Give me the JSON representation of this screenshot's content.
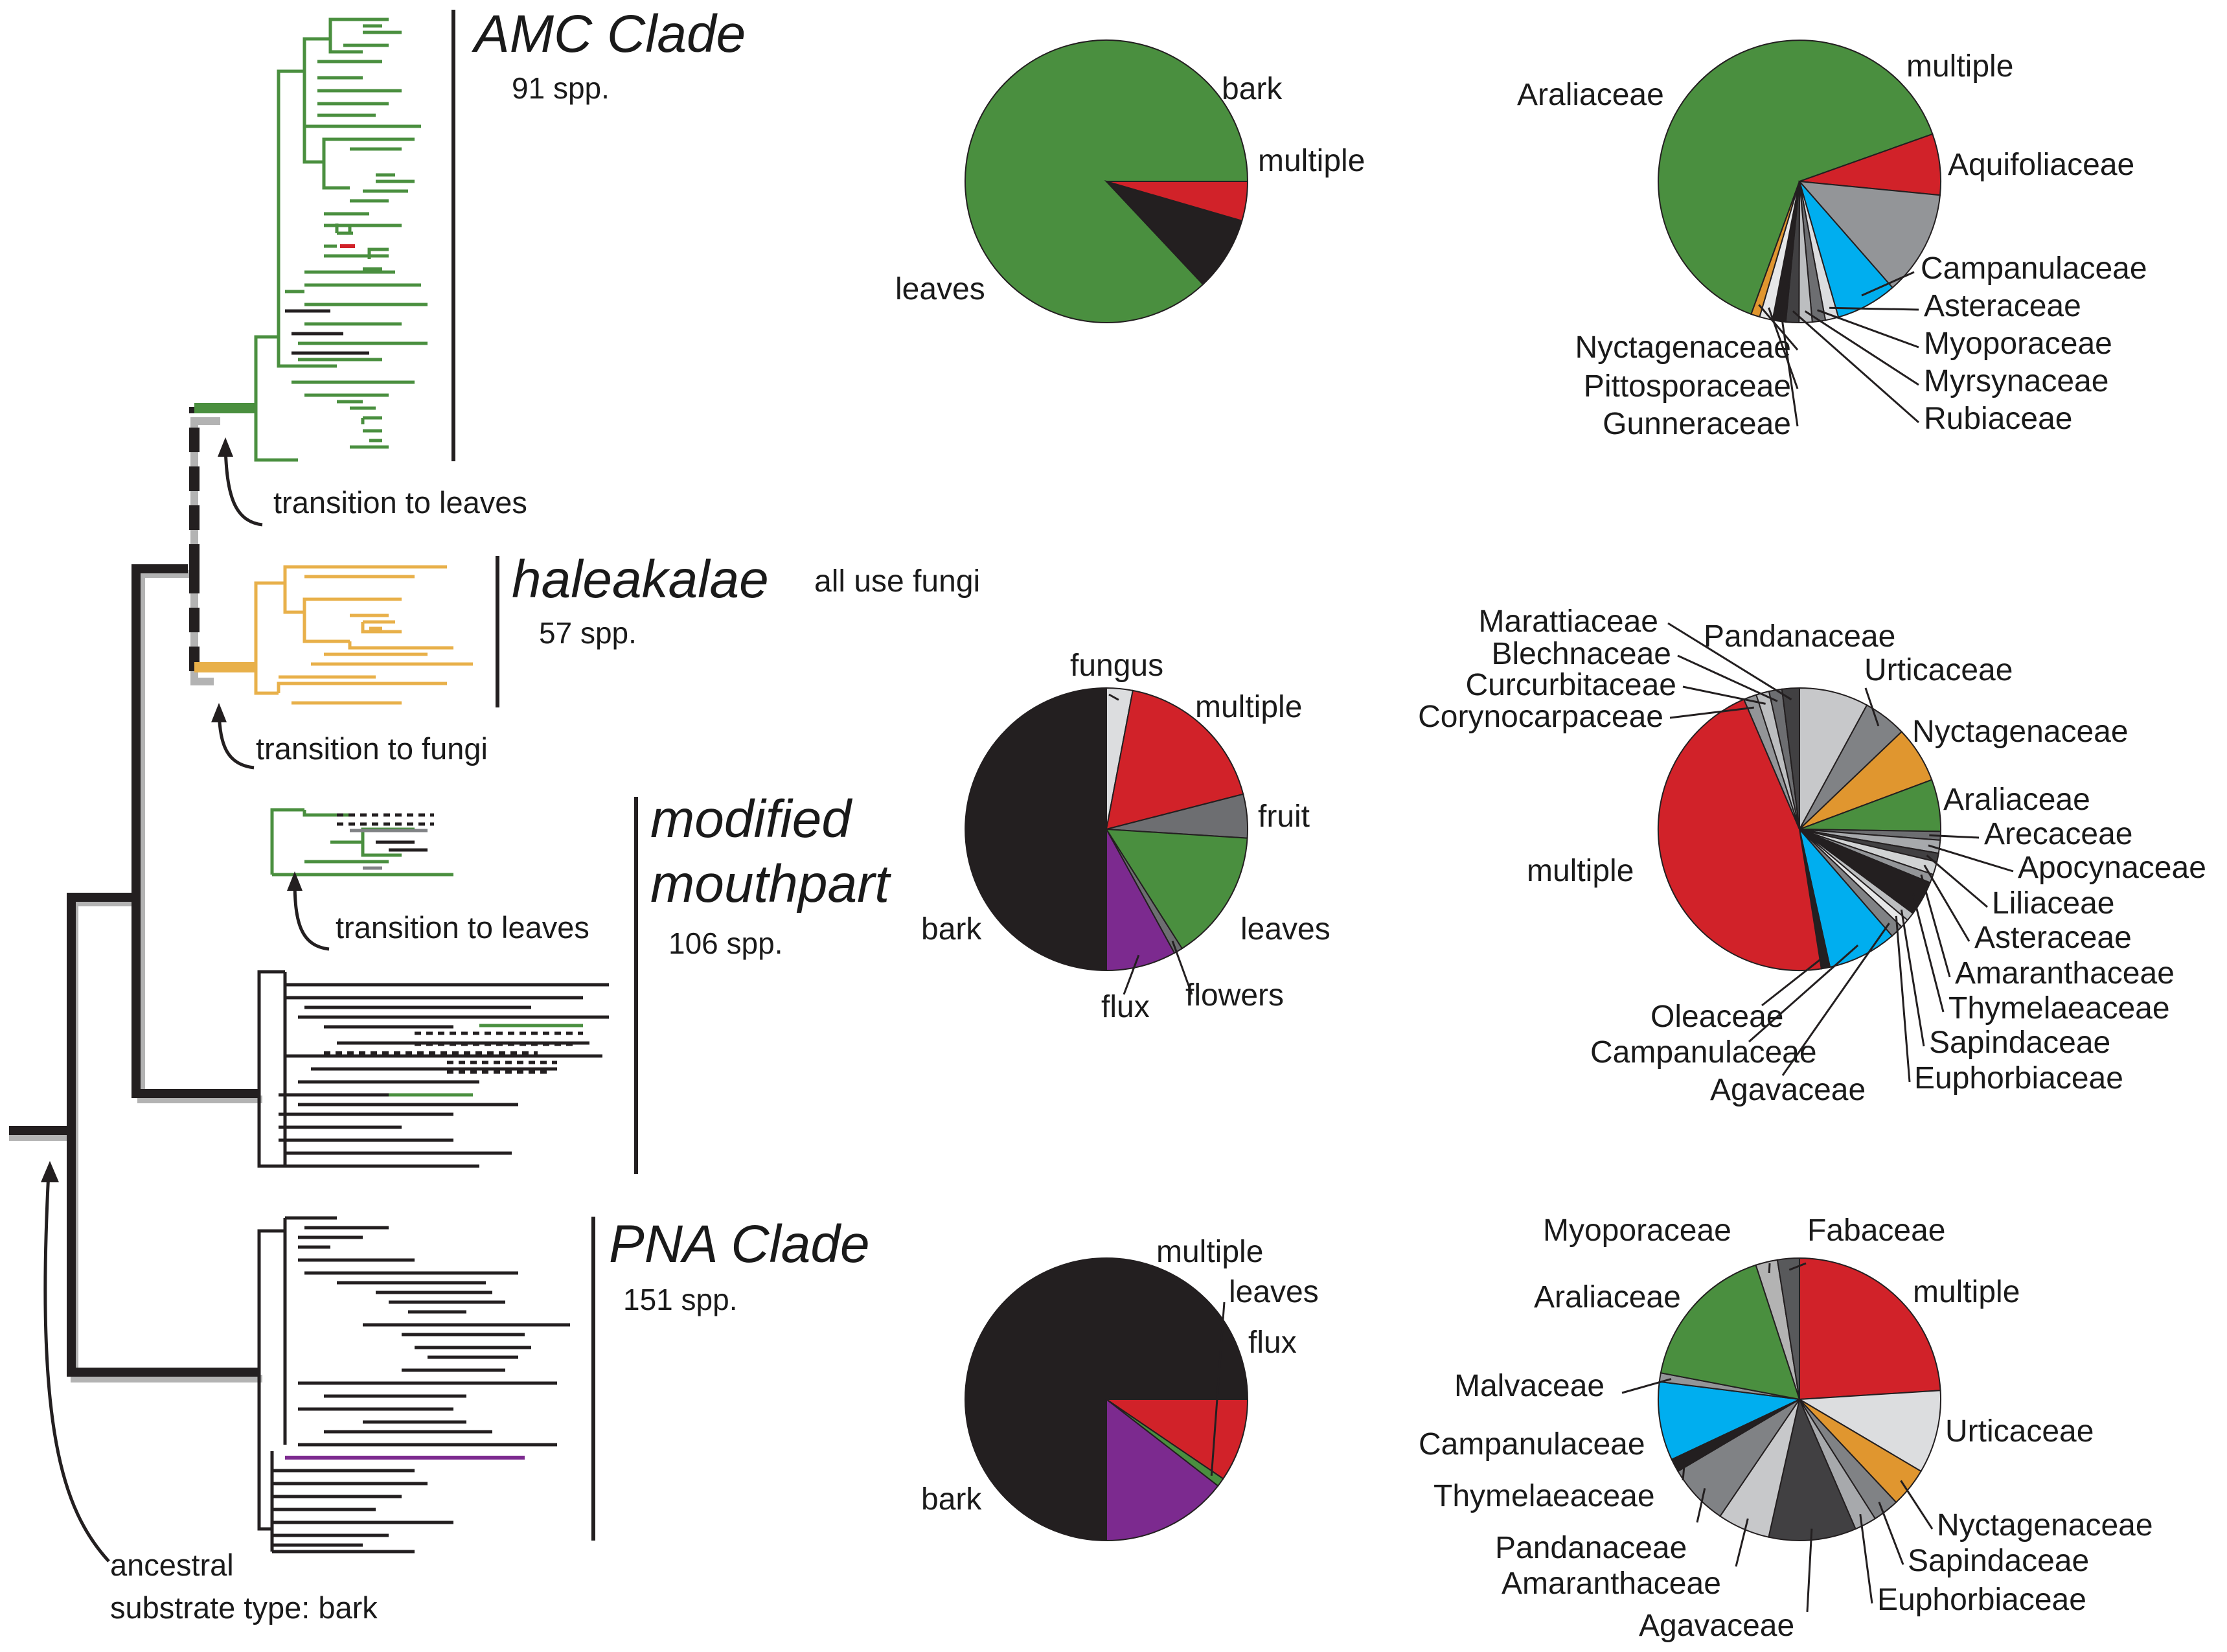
{
  "colors": {
    "leaves_green": "#4a8f3f",
    "bark_black": "#231f20",
    "multiple_red": "#d12229",
    "fungus_light": "#dcdddf",
    "fruit_dark_gray": "#6d6e71",
    "flux_purple": "#7c2a8f",
    "fungi_orange": "#e8b04a",
    "nyctag_orange": "#e0962f",
    "campan_blue": "#00aeef",
    "aquifol_gray": "#939598",
    "shadow_gray": "#b3b3b3"
  },
  "clades": {
    "amc": {
      "name": "AMC Clade",
      "spp": "91 spp."
    },
    "haleakalae": {
      "name": "haleakalae",
      "spp": "57 spp.",
      "note": "all use fungi"
    },
    "modified": {
      "name_line1": "modified",
      "name_line2": "mouthpart",
      "spp": "106 spp."
    },
    "pna": {
      "name": "PNA Clade",
      "spp": "151 spp."
    }
  },
  "annotations": {
    "transition_leaves_1": "transition to leaves",
    "transition_fungi": "transition to fungi",
    "transition_leaves_2": "transition to leaves",
    "ancestral_line1": "ancestral",
    "ancestral_line2": "substrate type: bark"
  },
  "substrate_pies": {
    "amc": {
      "slices": [
        {
          "label": "leaves",
          "pct": 87.0,
          "color": "#4a8f3f"
        },
        {
          "label": "bark",
          "pct": 8.5,
          "color": "#231f20"
        },
        {
          "label": "multiple",
          "pct": 4.5,
          "color": "#d12229"
        }
      ]
    },
    "modified": {
      "slices": [
        {
          "label": "bark",
          "pct": 50.0,
          "color": "#231f20"
        },
        {
          "label": "fungus",
          "pct": 3.0,
          "color": "#dcdddf"
        },
        {
          "label": "multiple",
          "pct": 18.0,
          "color": "#d12229"
        },
        {
          "label": "fruit",
          "pct": 5.0,
          "color": "#6d6e71"
        },
        {
          "label": "leaves",
          "pct": 15.0,
          "color": "#4a8f3f"
        },
        {
          "label": "flowers",
          "pct": 1.0,
          "color": "#6d6e71"
        },
        {
          "label": "flux",
          "pct": 8.0,
          "color": "#7c2a8f"
        }
      ]
    },
    "pna": {
      "slices": [
        {
          "label": "bark",
          "pct": 75.0,
          "color": "#231f20"
        },
        {
          "label": "multiple",
          "pct": 9.5,
          "color": "#d12229"
        },
        {
          "label": "leaves",
          "pct": 1.0,
          "color": "#4a8f3f"
        },
        {
          "label": "flux",
          "pct": 14.5,
          "color": "#7c2a8f"
        }
      ]
    }
  },
  "family_pies": {
    "amc": {
      "slices": [
        {
          "label": "Araliaceae",
          "pct": 64.0,
          "color": "#4a8f3f"
        },
        {
          "label": "multiple",
          "pct": 7.0,
          "color": "#d12229"
        },
        {
          "label": "Aquifoliaceae",
          "pct": 12.0,
          "color": "#939598"
        },
        {
          "label": "Campanulaceae",
          "pct": 7.0,
          "color": "#00aeef"
        },
        {
          "label": "Asteraceae",
          "pct": 1.5,
          "color": "#dcdddf"
        },
        {
          "label": "Myoporaceae",
          "pct": 1.5,
          "color": "#6d6e71"
        },
        {
          "label": "Myrsynaceae",
          "pct": 1.5,
          "color": "#bcbec0"
        },
        {
          "label": "Rubiaceae",
          "pct": 1.5,
          "color": "#414042"
        },
        {
          "label": "Gunneraceae",
          "pct": 1.5,
          "color": "#231f20"
        },
        {
          "label": "Pittosporaceae",
          "pct": 1.5,
          "color": "#e6e7e8"
        },
        {
          "label": "Nyctagenaceae",
          "pct": 1.0,
          "color": "#e0962f"
        }
      ]
    },
    "modified": {
      "slices": [
        {
          "label": "Pandanaceae",
          "pct": 8.0,
          "color": "#c7c8ca"
        },
        {
          "label": "Urticaceae",
          "pct": 5.0,
          "color": "#808285"
        },
        {
          "label": "Nyctagenaceae",
          "pct": 6.5,
          "color": "#e0962f"
        },
        {
          "label": "Araliaceae",
          "pct": 6.0,
          "color": "#4a8f3f"
        },
        {
          "label": "Arecaceae",
          "pct": 1.0,
          "color": "#6d6e71"
        },
        {
          "label": "Apocynaceae",
          "pct": 1.5,
          "color": "#a7a9ac"
        },
        {
          "label": "Liliaceae",
          "pct": 1.0,
          "color": "#414042"
        },
        {
          "label": "Asteraceae",
          "pct": 1.5,
          "color": "#d1d3d4"
        },
        {
          "label": "Amaranthaceae",
          "pct": 1.0,
          "color": "#939598"
        },
        {
          "label": "Thymelaeaceae",
          "pct": 4.0,
          "color": "#231f20"
        },
        {
          "label": "Sapindaceae",
          "pct": 1.0,
          "color": "#bcbec0"
        },
        {
          "label": "Euphorbiaceae",
          "pct": 1.0,
          "color": "#e6e7e8"
        },
        {
          "label": "Agavaceae",
          "pct": 1.5,
          "color": "#808285"
        },
        {
          "label": "Campanulaceae",
          "pct": 8.0,
          "color": "#00aeef"
        },
        {
          "label": "Oleaceae",
          "pct": 1.0,
          "color": "#231f20"
        },
        {
          "label": "multiple",
          "pct": 46.5,
          "color": "#d12229"
        },
        {
          "label": "Corynocarpaceae",
          "pct": 1.5,
          "color": "#939598"
        },
        {
          "label": "Curcurbitaceae",
          "pct": 1.5,
          "color": "#bcbec0"
        },
        {
          "label": "Blechnaceae",
          "pct": 1.5,
          "color": "#6d6e71"
        },
        {
          "label": "Marattiaceae",
          "pct": 2.0,
          "color": "#414042"
        }
      ]
    },
    "pna": {
      "slices": [
        {
          "label": "multiple",
          "pct": 24.0,
          "color": "#d12229"
        },
        {
          "label": "Urticaceae",
          "pct": 9.5,
          "color": "#dcdddf"
        },
        {
          "label": "Nyctagenaceae",
          "pct": 4.5,
          "color": "#e0962f"
        },
        {
          "label": "Sapindaceae",
          "pct": 3.0,
          "color": "#808285"
        },
        {
          "label": "Euphorbiaceae",
          "pct": 2.5,
          "color": "#a7a9ac"
        },
        {
          "label": "Agavaceae",
          "pct": 10.0,
          "color": "#414042"
        },
        {
          "label": "Amaranthaceae",
          "pct": 6.0,
          "color": "#c7c8ca"
        },
        {
          "label": "Pandanaceae",
          "pct": 7.0,
          "color": "#808285"
        },
        {
          "label": "Thymelaeaceae",
          "pct": 1.5,
          "color": "#231f20"
        },
        {
          "label": "Campanulaceae",
          "pct": 9.0,
          "color": "#00aeef"
        },
        {
          "label": "Malvaceae",
          "pct": 1.0,
          "color": "#939598"
        },
        {
          "label": "Araliaceae",
          "pct": 17.0,
          "color": "#4a8f3f"
        },
        {
          "label": "Myoporaceae",
          "pct": 2.5,
          "color": "#b3b3b3"
        },
        {
          "label": "Fabaceae",
          "pct": 2.5,
          "color": "#58595b"
        }
      ]
    }
  }
}
